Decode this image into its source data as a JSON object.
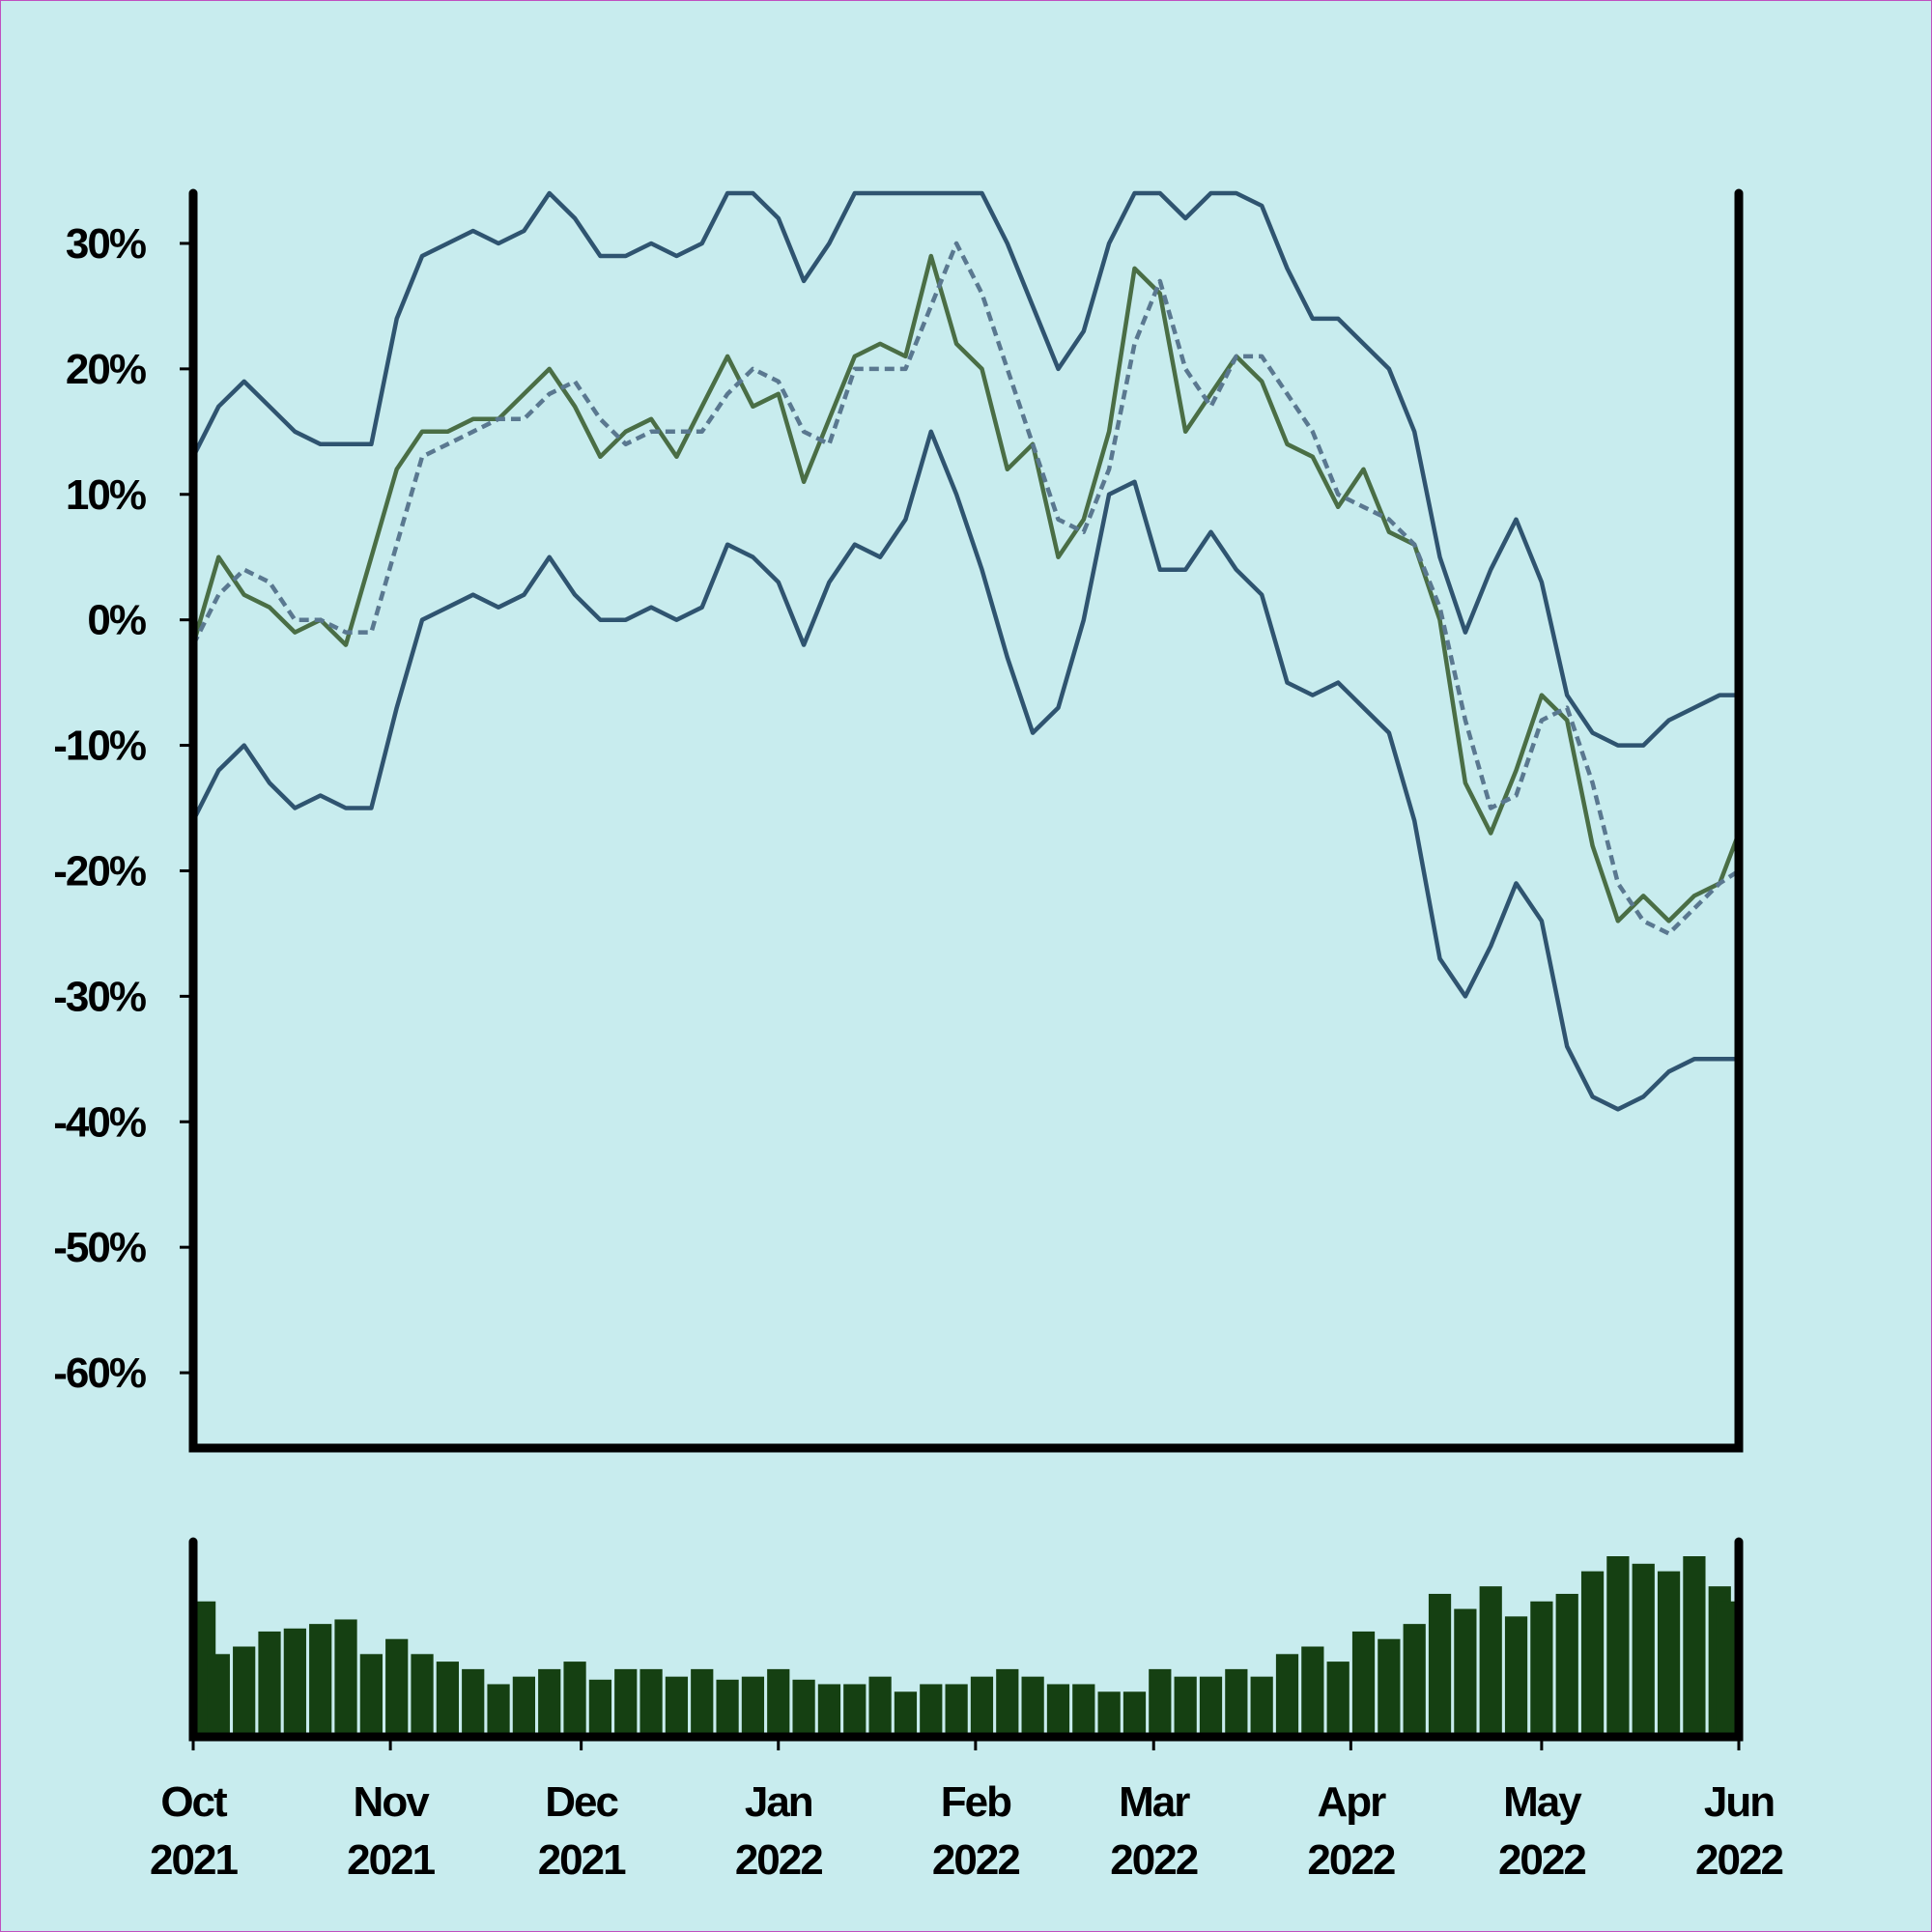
{
  "chart_data": [
    {
      "type": "line",
      "x": [
        0,
        4,
        8,
        12,
        16,
        20,
        24,
        28,
        32,
        36,
        40,
        44,
        48,
        52,
        56,
        60,
        64,
        68,
        72,
        76,
        80,
        84,
        88,
        92,
        96,
        100,
        104,
        108,
        112,
        116,
        120,
        124,
        128,
        132,
        136,
        140,
        144,
        148,
        152,
        156,
        160,
        164,
        168,
        172,
        176,
        180,
        184,
        188,
        192,
        196,
        200,
        204,
        208,
        212,
        216,
        220,
        224,
        228,
        232,
        236,
        240,
        243
      ],
      "xlim": [
        0,
        243
      ],
      "ylim": [
        -66,
        34
      ],
      "yticks": [
        {
          "value": 30,
          "label": "30%"
        },
        {
          "value": 20,
          "label": "20%"
        },
        {
          "value": 10,
          "label": "10%"
        },
        {
          "value": 0,
          "label": "0%"
        },
        {
          "value": -10,
          "label": "-10%"
        },
        {
          "value": -20,
          "label": "-20%"
        },
        {
          "value": -30,
          "label": "-30%"
        },
        {
          "value": -40,
          "label": "-40%"
        },
        {
          "value": -50,
          "label": "-50%"
        },
        {
          "value": -60,
          "label": "-60%"
        }
      ],
      "series": [
        {
          "color": "#2f5470",
          "values": [
            13,
            17,
            19,
            17,
            15,
            14,
            14,
            14,
            24,
            29,
            30,
            31,
            30,
            31,
            34,
            32,
            29,
            29,
            30,
            29,
            30,
            34,
            34,
            32,
            27,
            30,
            34,
            34,
            34,
            34,
            34,
            34,
            30,
            25,
            20,
            23,
            30,
            34,
            34,
            32,
            34,
            34,
            33,
            28,
            24,
            24,
            22,
            20,
            15,
            5,
            -1,
            4,
            8,
            3,
            -6,
            -9,
            -10,
            -10,
            -8,
            -7,
            -6,
            -6
          ]
        },
        {
          "color": "#2f5470",
          "values": [
            -16,
            -12,
            -10,
            -13,
            -15,
            -14,
            -15,
            -15,
            -7,
            0,
            1,
            2,
            1,
            2,
            5,
            2,
            0,
            0,
            1,
            0,
            1,
            6,
            5,
            3,
            -2,
            3,
            6,
            5,
            8,
            15,
            10,
            4,
            -3,
            -9,
            -7,
            0,
            10,
            11,
            4,
            4,
            7,
            4,
            2,
            -5,
            -6,
            -5,
            -7,
            -9,
            -16,
            -27,
            -30,
            -26,
            -21,
            -24,
            -34,
            -38,
            -39,
            -38,
            -36,
            -35,
            -35,
            -35
          ]
        },
        {
          "color": "#4a6e45",
          "values": [
            -2,
            5,
            2,
            1,
            -1,
            0,
            -2,
            5,
            12,
            15,
            15,
            16,
            16,
            18,
            20,
            17,
            13,
            15,
            16,
            13,
            17,
            21,
            17,
            18,
            11,
            16,
            21,
            22,
            21,
            29,
            22,
            20,
            12,
            14,
            5,
            8,
            15,
            28,
            26,
            15,
            18,
            21,
            19,
            14,
            13,
            9,
            12,
            7,
            6,
            0,
            -13,
            -17,
            -12,
            -6,
            -8,
            -18,
            -24,
            -22,
            -24,
            -22,
            -21,
            -17
          ]
        },
        {
          "color": "#5a7890",
          "dashed": true,
          "values": [
            -2,
            2,
            4,
            3,
            0,
            0,
            -1,
            -1,
            6,
            13,
            14,
            15,
            16,
            16,
            18,
            19,
            16,
            14,
            15,
            15,
            15,
            18,
            20,
            19,
            15,
            14,
            20,
            20,
            20,
            25,
            30,
            26,
            20,
            14,
            8,
            7,
            12,
            22,
            27,
            20,
            17,
            21,
            21,
            18,
            15,
            10,
            9,
            8,
            6,
            1,
            -8,
            -15,
            -14,
            -8,
            -7,
            -13,
            -21,
            -24,
            -25,
            -23,
            -21,
            -20
          ]
        }
      ]
    },
    {
      "type": "bar",
      "color": "#154012",
      "xlim": [
        0,
        243
      ],
      "xticks": [
        {
          "value": 0,
          "label": "Oct 2021"
        },
        {
          "value": 31,
          "label": "Nov 2021"
        },
        {
          "value": 61,
          "label": "Dec 2021"
        },
        {
          "value": 92,
          "label": "Jan 2022"
        },
        {
          "value": 123,
          "label": "Feb 2022"
        },
        {
          "value": 151,
          "label": "Mar 2022"
        },
        {
          "value": 182,
          "label": "Apr 2022"
        },
        {
          "value": 212,
          "label": "May 2022"
        },
        {
          "value": 243,
          "label": "Jun 2022"
        }
      ],
      "x": [
        0,
        4,
        8,
        12,
        16,
        20,
        24,
        28,
        32,
        36,
        40,
        44,
        48,
        52,
        56,
        60,
        64,
        68,
        72,
        76,
        80,
        84,
        88,
        92,
        96,
        100,
        104,
        108,
        112,
        116,
        120,
        124,
        128,
        132,
        136,
        140,
        144,
        148,
        152,
        156,
        160,
        164,
        168,
        172,
        176,
        180,
        184,
        188,
        192,
        196,
        200,
        204,
        208,
        212,
        216,
        220,
        224,
        228,
        232,
        236,
        240,
        243
      ],
      "values": [
        90,
        55,
        60,
        70,
        72,
        75,
        78,
        55,
        65,
        55,
        50,
        45,
        35,
        40,
        45,
        50,
        38,
        45,
        45,
        40,
        45,
        38,
        40,
        45,
        38,
        35,
        35,
        40,
        30,
        35,
        35,
        40,
        45,
        40,
        35,
        35,
        30,
        30,
        45,
        40,
        40,
        45,
        40,
        55,
        60,
        50,
        70,
        65,
        75,
        95,
        85,
        100,
        80,
        90,
        95,
        110,
        120,
        115,
        110,
        120,
        100,
        90
      ]
    }
  ]
}
